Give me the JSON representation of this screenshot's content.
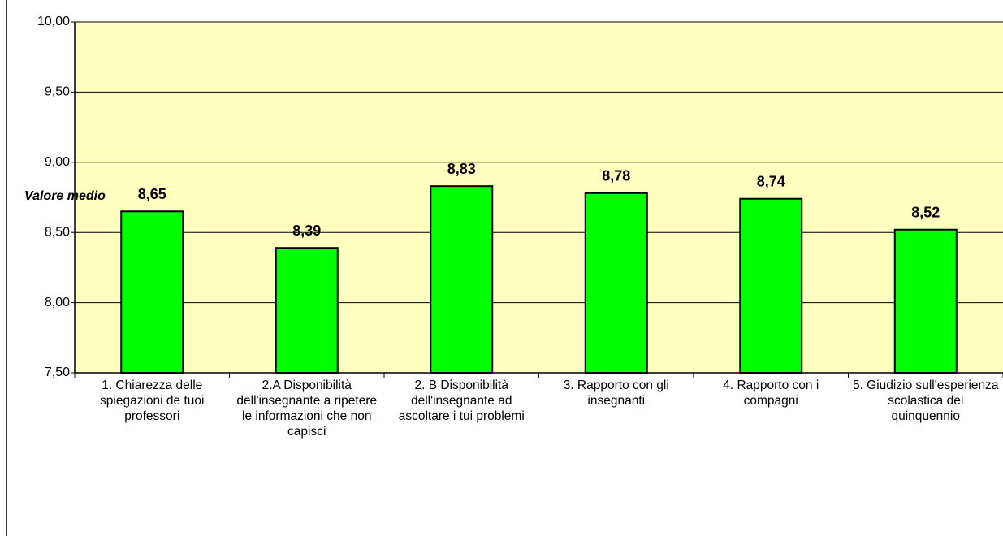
{
  "chart_data": {
    "type": "bar",
    "y_label": "Valore medio",
    "categories": [
      "1. Chiarezza delle spiegazioni de tuoi professori",
      "2.A Disponibilità dell'insegnante a ripetere le informazioni che non capisci",
      "2. B Disponibilità dell'insegnante ad ascoltare i tui problemi",
      "3. Rapporto con gli insegnanti",
      "4. Rapporto con i compagni",
      "5. Giudizio sull'esperienza scolastica del quinquennio"
    ],
    "values": [
      8.65,
      8.39,
      8.83,
      8.78,
      8.74,
      8.52
    ],
    "value_labels": [
      "8,65",
      "8,39",
      "8,83",
      "8,78",
      "8,74",
      "8,52"
    ],
    "color": "#00ff00",
    "ylim": [
      7.5,
      10
    ],
    "yticks": [
      {
        "value": 7.5,
        "label": "7,50"
      },
      {
        "value": 8,
        "label": "8,00"
      },
      {
        "value": 8.5,
        "label": "8,50"
      },
      {
        "value": 9,
        "label": "9,00"
      },
      {
        "value": 9.5,
        "label": "9,50"
      },
      {
        "value": 10,
        "label": "10,00"
      }
    ],
    "grid": true
  }
}
